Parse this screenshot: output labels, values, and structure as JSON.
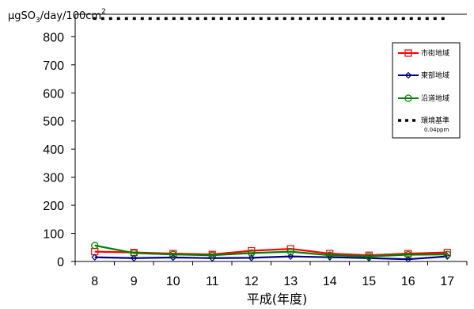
{
  "chart_data": {
    "type": "line",
    "ylabel_parts": {
      "mu": "μ",
      "g": "gSO",
      "sub": "3",
      "mid": "/day/100cm",
      "sup": "2"
    },
    "xlabel": "平成(年度)",
    "categories": [
      "8",
      "9",
      "10",
      "11",
      "12",
      "13",
      "14",
      "15",
      "16",
      "17"
    ],
    "ylim": [
      0,
      880
    ],
    "yticks": [
      0,
      100,
      200,
      300,
      400,
      500,
      600,
      700,
      800
    ],
    "grid": false,
    "legend_position": "top-right",
    "series": [
      {
        "name": "市街地域",
        "color": "#ff0000",
        "marker": "square",
        "values": [
          35,
          32,
          28,
          25,
          38,
          45,
          28,
          22,
          28,
          32
        ]
      },
      {
        "name": "東部地域",
        "color": "#000080",
        "marker": "diamond",
        "values": [
          15,
          12,
          14,
          12,
          13,
          18,
          15,
          12,
          8,
          18
        ]
      },
      {
        "name": "沿道地域",
        "color": "#008000",
        "marker": "circle",
        "values": [
          57,
          30,
          25,
          22,
          30,
          35,
          22,
          18,
          24,
          25
        ]
      }
    ],
    "reference": {
      "name": "環境基準",
      "sub": "0.04ppm",
      "color": "#000000",
      "value": 865
    }
  }
}
